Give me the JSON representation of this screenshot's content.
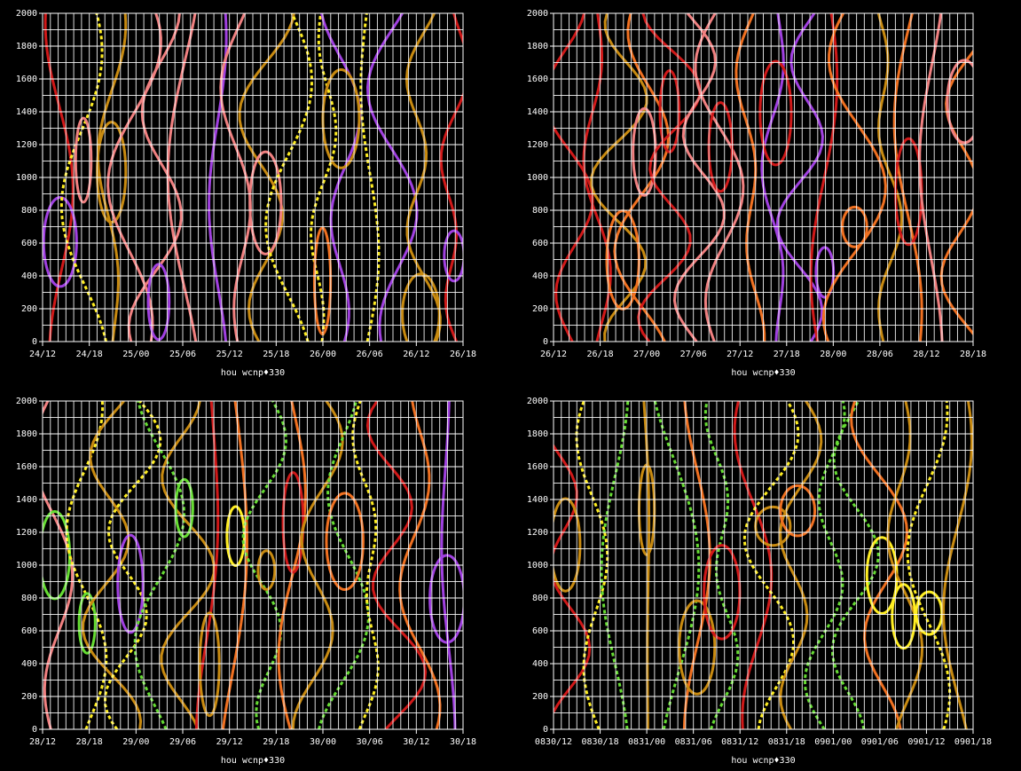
{
  "chart_data": [
    {
      "type": "contour",
      "ylim": [
        0,
        2000
      ],
      "yticks": [
        0,
        200,
        400,
        600,
        800,
        1000,
        1200,
        1400,
        1600,
        1800,
        2000
      ],
      "categories": [
        "24/12",
        "24/18",
        "25/00",
        "25/06",
        "25/12",
        "25/18",
        "26/00",
        "26/06",
        "26/12",
        "26/18"
      ],
      "xlabel": "hou wcnp♦330",
      "grid": true,
      "colors": [
        "#d01818",
        "#f07020",
        "#f08080",
        "#a040e0",
        "#ffee22",
        "#c88a10"
      ]
    },
    {
      "type": "contour",
      "ylim": [
        0,
        2000
      ],
      "yticks": [
        0,
        200,
        400,
        600,
        800,
        1000,
        1200,
        1400,
        1600,
        1800,
        2000
      ],
      "categories": [
        "26/12",
        "26/18",
        "27/00",
        "27/06",
        "27/12",
        "27/18",
        "28/00",
        "28/06",
        "28/12",
        "28/18"
      ],
      "xlabel": "hou wcnp♦330",
      "grid": true,
      "colors": [
        "#d01818",
        "#f07020",
        "#f08080",
        "#a040e0",
        "#c88a10"
      ]
    },
    {
      "type": "contour",
      "ylim": [
        0,
        2000
      ],
      "yticks": [
        0,
        200,
        400,
        600,
        800,
        1000,
        1200,
        1400,
        1600,
        1800,
        2000
      ],
      "categories": [
        "28/12",
        "28/18",
        "29/00",
        "29/06",
        "29/12",
        "29/18",
        "30/00",
        "30/06",
        "30/12",
        "30/18"
      ],
      "xlabel": "hou wcnp♦330",
      "grid": true,
      "colors": [
        "#d01818",
        "#f07020",
        "#f08080",
        "#a040e0",
        "#c88a10",
        "#ffee22",
        "#66dd33"
      ]
    },
    {
      "type": "contour",
      "ylim": [
        0,
        2000
      ],
      "yticks": [
        0,
        200,
        400,
        600,
        800,
        1000,
        1200,
        1400,
        1600,
        1800,
        2000
      ],
      "categories": [
        "0830/12",
        "0830/18",
        "0831/00",
        "0831/06",
        "0831/12",
        "0831/18",
        "0901/00",
        "0901/06",
        "0901/12",
        "0901/18"
      ],
      "xlabel": "hou wcnp♦330",
      "grid": true,
      "colors": [
        "#ffee22",
        "#c88a10",
        "#66dd33",
        "#f07020",
        "#d01818",
        "#ffee22"
      ]
    }
  ]
}
